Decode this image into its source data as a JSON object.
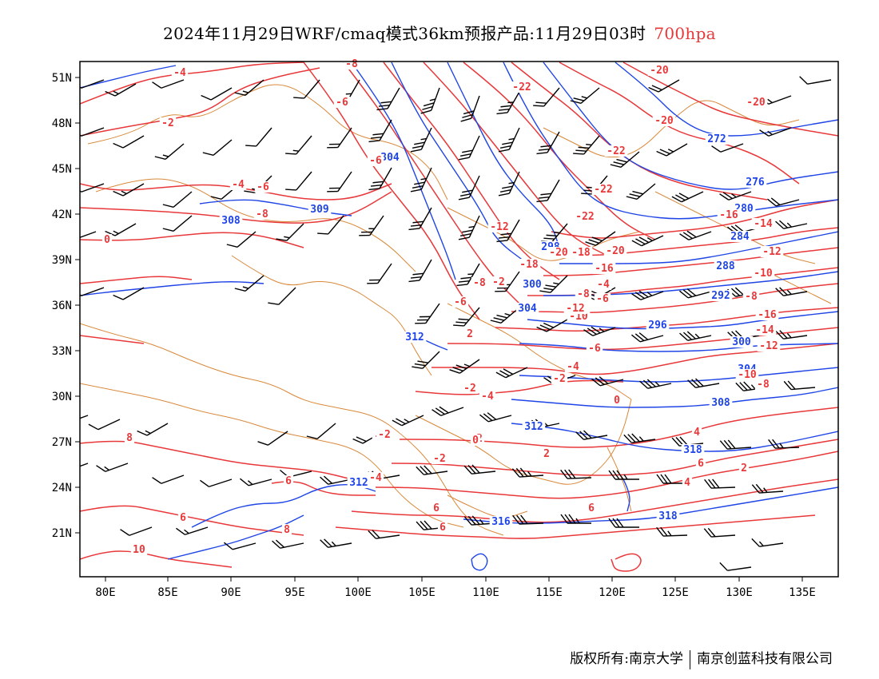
{
  "title": {
    "main": "2024年11月29日WRF/cmaq模式36km预报产品:11月29日03时",
    "level": "700hpa"
  },
  "axes": {
    "lon_labels": [
      "80E",
      "85E",
      "90E",
      "95E",
      "100E",
      "105E",
      "110E",
      "115E",
      "120E",
      "125E",
      "130E",
      "135E"
    ],
    "lat_labels": [
      "51N",
      "48N",
      "45N",
      "42N",
      "39N",
      "36N",
      "33N",
      "30N",
      "27N",
      "24N",
      "21N"
    ]
  },
  "colors": {
    "temperature": "#e8383a",
    "geopotential": "#1f45e6",
    "border": "#d9893a",
    "wind": "#000000"
  },
  "geopotential_labels": [
    "308",
    "309",
    "304",
    "312",
    "312",
    "312",
    "316",
    "318",
    "318",
    "298",
    "300",
    "304",
    "296",
    "300",
    "304",
    "308",
    "292",
    "288",
    "284",
    "280",
    "276",
    "272"
  ],
  "temperature_labels": [
    "-4",
    "-8",
    "-6",
    "-2",
    "-6",
    "-4",
    "-6",
    "-8",
    "-22",
    "-22",
    "-22",
    "-22",
    "-20",
    "-20",
    "-20",
    "-12",
    "-18",
    "-20",
    "-16",
    "-14",
    "-12",
    "-10",
    "-8",
    "-4",
    "-6",
    "-8",
    "-10",
    "-12",
    "-16",
    "-18",
    "-20",
    "-16",
    "-14",
    "-12",
    "-10",
    "-8",
    "-6",
    "-4",
    "-2",
    "0",
    "2",
    "-2",
    "-4",
    "-6",
    "-8",
    "-2",
    "2",
    "0",
    "-2",
    "-4",
    "-2",
    "-2",
    "0",
    "2",
    "4",
    "6",
    "2",
    "4",
    "6",
    "6",
    "6",
    "6",
    "6",
    "8",
    "8",
    "10"
  ],
  "footer": {
    "copyright": "版权所有:南京大学",
    "company": "南京创蓝科技有限公司"
  }
}
